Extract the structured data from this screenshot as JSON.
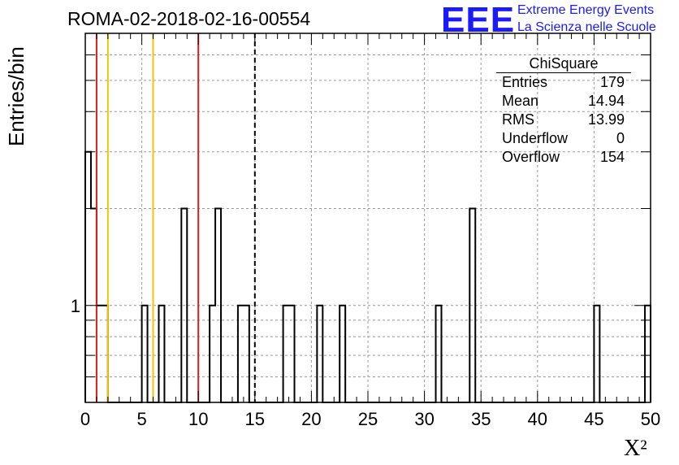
{
  "header": {
    "title": "ROMA-02-2018-02-16-00554",
    "logo_text": "EEE",
    "logo_line1": "Extreme Energy Events",
    "logo_line2": "La Scienza nelle Scuole",
    "logo_color": "#1a1aff"
  },
  "stats_box": {
    "title": "ChiSquare",
    "rows": [
      {
        "label": "Entries",
        "value": "179"
      },
      {
        "label": "Mean",
        "value": "14.94"
      },
      {
        "label": "RMS",
        "value": "13.99"
      },
      {
        "label": "Underflow",
        "value": "0"
      },
      {
        "label": "Overflow",
        "value": "154"
      }
    ]
  },
  "chart_data": {
    "type": "bar",
    "histogram_style": "step",
    "xlabel": "X²",
    "ylabel": "Entries/bin",
    "xlim": [
      0,
      50
    ],
    "ylog": true,
    "ylim": [
      0.5,
      7
    ],
    "grid": true,
    "bin_width": 0.5,
    "xticks": [
      0,
      5,
      10,
      15,
      20,
      25,
      30,
      35,
      40,
      45,
      50
    ],
    "yticks": [
      1
    ],
    "bins": [
      {
        "x": 0.0,
        "y": 3
      },
      {
        "x": 0.5,
        "y": 2
      },
      {
        "x": 1.0,
        "y": 1
      },
      {
        "x": 1.5,
        "y": 1
      },
      {
        "x": 5.0,
        "y": 1
      },
      {
        "x": 6.5,
        "y": 1
      },
      {
        "x": 8.5,
        "y": 2
      },
      {
        "x": 11.0,
        "y": 1
      },
      {
        "x": 11.5,
        "y": 2
      },
      {
        "x": 13.5,
        "y": 1
      },
      {
        "x": 14.0,
        "y": 1
      },
      {
        "x": 17.5,
        "y": 1
      },
      {
        "x": 18.0,
        "y": 1
      },
      {
        "x": 20.5,
        "y": 1
      },
      {
        "x": 22.5,
        "y": 1
      },
      {
        "x": 31.0,
        "y": 1
      },
      {
        "x": 34.0,
        "y": 2
      },
      {
        "x": 45.0,
        "y": 1
      },
      {
        "x": 49.5,
        "y": 1
      }
    ],
    "reference_lines": [
      {
        "x": 1,
        "color": "#e41a1c",
        "style": "solid"
      },
      {
        "x": 2,
        "color": "#f5c400",
        "style": "solid"
      },
      {
        "x": 6,
        "color": "#f5c400",
        "style": "solid"
      },
      {
        "x": 10,
        "color": "#e41a1c",
        "style": "solid"
      },
      {
        "x": 15,
        "color": "#000000",
        "style": "dashed"
      }
    ]
  }
}
